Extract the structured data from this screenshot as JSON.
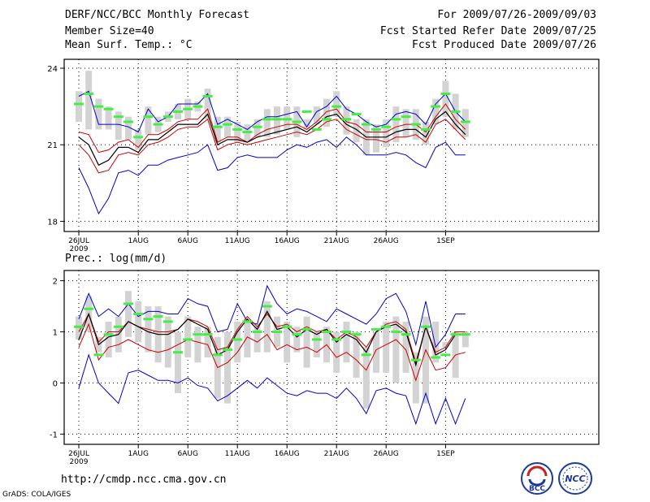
{
  "header": {
    "title": "DERF/NCC/BCC Monthly Forecast",
    "member_size": "Member Size=40",
    "variable": "Mean Surf. Temp.: °C",
    "period": "For 2009/07/26-2009/09/03",
    "started_refer": "Fcst Started Refer Date 2009/07/25",
    "produced": "Fcst Produced Date 2009/07/26"
  },
  "colors": {
    "box": "#d3d3d3",
    "median": "#44ee44",
    "spread": "#0000cc",
    "mean_band": "#cc0000",
    "mean": "#000000"
  },
  "chart_data": [
    {
      "type": "box-line",
      "name": "temperature",
      "ylabel": "",
      "ylim": [
        17.6,
        24.35
      ],
      "yticks": [
        18,
        21,
        24
      ],
      "xticks": [
        "26JUL",
        "1AUG",
        "6AUG",
        "11AUG",
        "16AUG",
        "21AUG",
        "26AUG",
        "1SEP"
      ],
      "xticks_index": [
        0,
        6,
        11,
        16,
        21,
        26,
        31,
        37
      ],
      "year_label": "2009",
      "days": 40,
      "box_low": [
        21.9,
        21.6,
        21.6,
        21.6,
        21.2,
        21.2,
        20.8,
        21.4,
        21.5,
        21.9,
        22.0,
        22.0,
        22.3,
        22.0,
        21.1,
        21.3,
        21.1,
        21.1,
        21.3,
        21.3,
        21.4,
        21.6,
        21.3,
        21.6,
        21.8,
        21.7,
        22.1,
        21.4,
        21.1,
        20.6,
        20.7,
        20.9,
        21.1,
        21.3,
        21.2,
        21.0,
        21.8,
        22.1,
        21.6,
        21.3
      ],
      "box_high": [
        23.1,
        23.9,
        22.8,
        22.5,
        22.3,
        22.1,
        21.6,
        22.5,
        22.1,
        22.3,
        22.6,
        22.8,
        22.7,
        23.2,
        22.1,
        22.1,
        21.9,
        21.8,
        22.0,
        22.4,
        22.5,
        22.5,
        22.5,
        22.0,
        22.5,
        22.8,
        23.1,
        22.5,
        22.0,
        22.0,
        21.8,
        22.0,
        22.5,
        22.4,
        22.4,
        21.9,
        22.8,
        23.5,
        23.0,
        22.4
      ],
      "median": [
        22.6,
        23.0,
        22.5,
        22.4,
        22.1,
        21.9,
        21.3,
        22.1,
        21.8,
        22.1,
        22.3,
        22.4,
        22.5,
        22.9,
        21.7,
        21.8,
        21.6,
        21.5,
        21.7,
        22.0,
        22.0,
        22.0,
        21.9,
        22.3,
        21.6,
        22.0,
        22.5,
        22.0,
        22.2,
        21.8,
        21.6,
        21.7,
        22.0,
        22.1,
        21.8,
        21.6,
        22.5,
        23.0,
        22.3,
        21.9
      ],
      "spread_upper": [
        22.9,
        23.1,
        21.8,
        21.8,
        21.8,
        21.7,
        21.5,
        22.4,
        21.9,
        22.1,
        22.6,
        22.6,
        22.6,
        23.0,
        21.8,
        22.0,
        21.8,
        21.6,
        21.9,
        22.1,
        22.1,
        22.2,
        22.3,
        21.7,
        22.3,
        22.5,
        22.9,
        22.4,
        22.2,
        21.9,
        21.7,
        21.8,
        22.2,
        22.3,
        22.2,
        21.8,
        22.6,
        23.0,
        22.3,
        21.9
      ],
      "spread_lower": [
        20.1,
        19.3,
        18.3,
        18.9,
        19.9,
        20.0,
        19.8,
        20.2,
        20.2,
        20.4,
        20.5,
        20.6,
        20.7,
        21.0,
        20.0,
        20.1,
        20.5,
        20.6,
        20.5,
        20.5,
        20.5,
        20.8,
        21.0,
        20.9,
        21.1,
        21.2,
        20.9,
        21.3,
        21.0,
        20.6,
        20.6,
        20.6,
        20.7,
        20.6,
        20.3,
        20.1,
        20.9,
        21.1,
        20.6,
        20.6
      ],
      "mean_band_upper": [
        21.5,
        21.4,
        20.7,
        20.8,
        21.1,
        21.2,
        20.9,
        21.4,
        21.4,
        21.6,
        21.9,
        22.0,
        22.0,
        22.4,
        21.1,
        21.3,
        21.3,
        21.1,
        21.4,
        21.6,
        21.7,
        21.8,
        21.8,
        21.6,
        21.9,
        22.3,
        22.4,
        21.9,
        21.8,
        21.5,
        21.5,
        21.5,
        21.7,
        21.8,
        21.8,
        21.5,
        22.1,
        22.6,
        22.0,
        21.6
      ],
      "mean_band_lower": [
        21.0,
        20.6,
        19.9,
        20.0,
        20.6,
        20.7,
        20.6,
        21.0,
        21.1,
        21.3,
        21.6,
        21.7,
        21.7,
        22.0,
        20.8,
        21.0,
        21.1,
        21.0,
        21.1,
        21.2,
        21.3,
        21.4,
        21.5,
        21.4,
        21.6,
        21.9,
        22.0,
        21.6,
        21.4,
        21.2,
        21.2,
        21.1,
        21.3,
        21.3,
        21.4,
        21.1,
        21.8,
        22.0,
        21.6,
        21.2
      ],
      "mean": [
        21.3,
        21.0,
        20.2,
        20.4,
        20.9,
        20.9,
        20.7,
        21.2,
        21.2,
        21.5,
        21.8,
        21.8,
        21.8,
        22.2,
        21.0,
        21.2,
        21.2,
        21.1,
        21.3,
        21.4,
        21.5,
        21.6,
        21.7,
        21.5,
        21.8,
        22.1,
        22.2,
        21.8,
        21.6,
        21.3,
        21.3,
        21.3,
        21.5,
        21.6,
        21.6,
        21.3,
        22.0,
        22.3,
        21.8,
        21.4
      ]
    },
    {
      "type": "box-line",
      "name": "precipitation",
      "ylabel": "Prec.: log(mm/d)",
      "ylim": [
        -1.2,
        2.2
      ],
      "yticks": [
        -1,
        0,
        1,
        2
      ],
      "xticks": [
        "26JUL",
        "1AUG",
        "6AUG",
        "11AUG",
        "16AUG",
        "21AUG",
        "26AUG",
        "1SEP"
      ],
      "xticks_index": [
        0,
        6,
        11,
        16,
        21,
        26,
        31,
        37
      ],
      "year_label": "2009",
      "days": 40,
      "box_low": [
        0.85,
        1.0,
        0.6,
        0.5,
        0.6,
        0.9,
        0.8,
        0.6,
        0.4,
        0.3,
        -0.2,
        0.5,
        0.4,
        0.5,
        -0.3,
        -0.4,
        0.4,
        0.5,
        0.6,
        0.6,
        0.7,
        0.4,
        0.6,
        0.3,
        0.5,
        0.4,
        0.2,
        0.4,
        0.1,
        -0.5,
        0.2,
        0.2,
        0.0,
        0.2,
        -0.4,
        -0.4,
        0.4,
        0.7,
        0.1,
        0.7
      ],
      "box_high": [
        1.3,
        1.7,
        0.9,
        1.2,
        1.3,
        1.8,
        1.6,
        1.5,
        1.5,
        1.3,
        1.0,
        1.3,
        1.1,
        1.1,
        0.9,
        1.0,
        1.2,
        1.2,
        1.1,
        1.6,
        1.3,
        1.2,
        1.1,
        1.3,
        1.0,
        1.1,
        1.0,
        1.2,
        1.0,
        0.7,
        1.0,
        1.2,
        1.3,
        1.2,
        0.6,
        1.3,
        1.2,
        0.8,
        1.0,
        1.0
      ],
      "median": [
        1.1,
        1.45,
        0.55,
        0.95,
        1.1,
        1.55,
        1.35,
        1.25,
        1.3,
        1.2,
        0.6,
        0.85,
        0.95,
        0.95,
        0.55,
        0.65,
        0.85,
        1.2,
        1.0,
        1.5,
        1.0,
        1.1,
        0.95,
        1.05,
        0.85,
        1.0,
        0.85,
        1.0,
        0.95,
        0.55,
        1.05,
        1.1,
        1.0,
        0.95,
        0.45,
        1.1,
        0.5,
        0.55,
        0.95,
        0.95
      ],
      "spread_upper": [
        1.25,
        1.75,
        1.3,
        1.45,
        1.3,
        1.55,
        1.3,
        1.4,
        1.4,
        1.35,
        1.35,
        1.65,
        1.55,
        1.5,
        1.0,
        1.05,
        1.55,
        1.2,
        1.15,
        1.9,
        1.55,
        1.35,
        1.45,
        1.4,
        1.3,
        1.2,
        1.45,
        1.35,
        1.25,
        1.15,
        1.35,
        1.65,
        1.75,
        1.4,
        0.75,
        1.6,
        0.7,
        0.95,
        1.35,
        1.35
      ],
      "spread_lower": [
        -0.1,
        0.55,
        0.0,
        -0.2,
        -0.4,
        0.2,
        0.25,
        0.15,
        0.05,
        0.05,
        0.0,
        0.1,
        -0.05,
        -0.1,
        -0.35,
        -0.25,
        -0.1,
        0.05,
        -0.1,
        0.1,
        -0.05,
        -0.2,
        -0.25,
        -0.15,
        -0.2,
        -0.2,
        -0.3,
        -0.1,
        -0.3,
        -0.6,
        -0.15,
        -0.1,
        -0.2,
        -0.25,
        -0.8,
        -0.2,
        -0.8,
        -0.3,
        -0.8,
        -0.3
      ],
      "mean_band_upper": [
        1.0,
        1.35,
        0.8,
        1.0,
        1.0,
        1.2,
        1.1,
        1.05,
        1.0,
        1.0,
        1.05,
        1.25,
        1.2,
        1.1,
        0.65,
        0.7,
        1.05,
        1.3,
        1.1,
        1.35,
        1.1,
        1.15,
        1.0,
        1.1,
        1.0,
        1.05,
        0.85,
        1.0,
        0.9,
        0.7,
        1.0,
        1.15,
        1.2,
        1.05,
        0.4,
        1.1,
        0.6,
        0.7,
        1.0,
        1.0
      ],
      "mean_band_lower": [
        0.7,
        1.15,
        0.45,
        0.7,
        0.75,
        0.85,
        0.75,
        0.65,
        0.6,
        0.65,
        0.75,
        0.85,
        0.8,
        0.75,
        0.3,
        0.4,
        0.6,
        0.9,
        0.8,
        0.95,
        0.65,
        0.75,
        0.65,
        0.7,
        0.6,
        0.75,
        0.5,
        0.6,
        0.45,
        0.25,
        0.65,
        0.75,
        0.85,
        0.65,
        0.05,
        0.65,
        0.25,
        0.3,
        0.55,
        0.6
      ],
      "mean": [
        0.85,
        1.35,
        0.75,
        0.9,
        0.95,
        1.2,
        1.1,
        1.0,
        0.95,
        0.95,
        1.05,
        1.25,
        1.15,
        1.05,
        0.55,
        0.65,
        1.0,
        1.25,
        1.05,
        1.4,
        1.05,
        1.1,
        0.9,
        1.05,
        0.95,
        1.05,
        0.8,
        0.95,
        0.85,
        0.6,
        1.0,
        1.1,
        1.15,
        1.0,
        0.35,
        1.1,
        0.55,
        0.65,
        0.95,
        0.95
      ]
    }
  ],
  "footer": {
    "url": "http://cmdp.ncc.cma.gov.cn",
    "grads": "GrADS: COLA/IGES",
    "logo_bcc": "BCC",
    "logo_ncc": "NCC"
  }
}
